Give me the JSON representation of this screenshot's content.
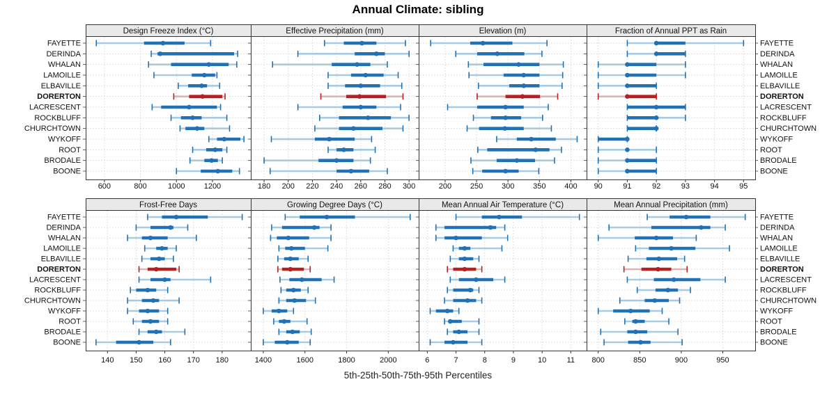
{
  "title": "Annual Climate: sibling",
  "caption": "5th-25th-50th-75th-95th Percentiles",
  "colors": {
    "series_blue": "#2171b5",
    "series_blue_light": "#a6cbe3",
    "highlight_red": "#b22222",
    "highlight_red_light": "#e3b2b2",
    "grid": "#d6d6d6",
    "strip_bg": "#e9e9e9",
    "panel_border": "#333333",
    "text": "#111111"
  },
  "chart_data": {
    "type": "dot-whisker",
    "note": "5th-25th-50th-75th-95th percentile summaries per location; DORERTON highlighted",
    "percentile_levels": [
      5,
      25,
      50,
      75,
      95
    ],
    "categories": [
      "FAYETTE",
      "DERINDA",
      "WHALAN",
      "LAMOILLE",
      "ELBAVILLE",
      "DORERTON",
      "LACRESCENT",
      "ROCKBLUFF",
      "CHURCHTOWN",
      "WYKOFF",
      "ROOT",
      "BRODALE",
      "BOONE"
    ],
    "highlight": "DORERTON",
    "legend_position": "none",
    "grid": "dotted",
    "panels": [
      {
        "title": "Design Freeze Index (°C)",
        "xticks": [
          600,
          800,
          1000,
          1200
        ],
        "xlim": [
          496,
          1413
        ],
        "values": [
          [
            555,
            820,
            925,
            1045,
            1190
          ],
          [
            860,
            895,
            910,
            1320,
            1340
          ],
          [
            845,
            970,
            1180,
            1290,
            1335
          ],
          [
            875,
            1085,
            1155,
            1215,
            1225
          ],
          [
            1010,
            1065,
            1140,
            1170,
            1240
          ],
          [
            985,
            1070,
            1145,
            1255,
            1270
          ],
          [
            865,
            915,
            1070,
            1225,
            1245
          ],
          [
            970,
            1025,
            1090,
            1140,
            1280
          ],
          [
            1020,
            1050,
            1115,
            1155,
            1295
          ],
          [
            1180,
            1225,
            1265,
            1355,
            1375
          ],
          [
            1090,
            1165,
            1215,
            1255,
            1280
          ],
          [
            1075,
            1155,
            1195,
            1230,
            1255
          ],
          [
            1000,
            1135,
            1230,
            1310,
            1350
          ]
        ]
      },
      {
        "title": "Effective Precipitation (mm)",
        "xticks": [
          180,
          200,
          220,
          240,
          260,
          280,
          300
        ],
        "xlim": [
          169,
          308
        ],
        "values": [
          [
            230,
            246,
            261,
            273,
            297
          ],
          [
            208,
            255,
            273,
            280,
            300
          ],
          [
            187,
            236,
            257,
            268,
            282
          ],
          [
            233,
            252,
            264,
            279,
            291
          ],
          [
            233,
            247,
            260,
            276,
            294
          ],
          [
            227,
            248,
            259,
            281,
            295
          ],
          [
            208,
            245,
            260,
            273,
            293
          ],
          [
            226,
            242,
            266,
            285,
            300
          ],
          [
            222,
            242,
            254,
            278,
            295
          ],
          [
            186,
            222,
            234,
            255,
            269
          ],
          [
            233,
            240,
            246,
            254,
            272
          ],
          [
            180,
            225,
            240,
            254,
            268
          ],
          [
            185,
            240,
            252,
            267,
            282
          ]
        ]
      },
      {
        "title": "Elevation (m)",
        "xticks": [
          200,
          250,
          300,
          350,
          400
        ],
        "xlim": [
          158,
          425
        ],
        "values": [
          [
            177,
            240,
            260,
            307,
            362
          ],
          [
            217,
            251,
            283,
            326,
            354
          ],
          [
            237,
            261,
            317,
            350,
            388
          ],
          [
            238,
            293,
            325,
            350,
            387
          ],
          [
            253,
            302,
            325,
            350,
            386
          ],
          [
            251,
            296,
            323,
            351,
            379
          ],
          [
            204,
            251,
            296,
            325,
            364
          ],
          [
            245,
            273,
            296,
            321,
            355
          ],
          [
            235,
            254,
            295,
            325,
            369
          ],
          [
            282,
            314,
            337,
            376,
            410
          ],
          [
            252,
            267,
            344,
            366,
            385
          ],
          [
            241,
            282,
            314,
            343,
            374
          ],
          [
            244,
            259,
            296,
            317,
            349
          ]
        ]
      },
      {
        "title": "Fraction of Annual PPT as Rain",
        "xticks": [
          90,
          91,
          92,
          93,
          94,
          95
        ],
        "xlim": [
          89.6,
          95.4
        ],
        "values": [
          [
            91,
            92,
            92,
            93,
            95
          ],
          [
            91,
            92,
            92,
            93,
            93
          ],
          [
            90,
            91,
            91,
            92,
            93
          ],
          [
            90,
            91,
            91,
            92,
            93
          ],
          [
            90,
            91,
            91,
            92,
            92
          ],
          [
            90,
            91,
            91,
            92,
            92
          ],
          [
            91,
            91,
            92,
            93,
            93
          ],
          [
            91,
            91,
            92,
            92,
            93
          ],
          [
            91,
            91,
            92,
            92,
            92
          ],
          [
            90,
            90,
            91,
            91,
            91
          ],
          [
            90,
            91,
            91,
            91,
            92
          ],
          [
            90,
            91,
            91,
            92,
            92
          ],
          [
            90,
            91,
            91,
            92,
            92
          ]
        ]
      },
      {
        "title": "Frost-Free Days",
        "xticks": [
          140,
          150,
          160,
          170,
          180
        ],
        "xlim": [
          132.4,
          190
        ],
        "values": [
          [
            154,
            159,
            164,
            175,
            187
          ],
          [
            150,
            155,
            162,
            163,
            168
          ],
          [
            147,
            152,
            155,
            161,
            171
          ],
          [
            153,
            157,
            159,
            161,
            164
          ],
          [
            152,
            155,
            158,
            160,
            163
          ],
          [
            151,
            154,
            157,
            164,
            165
          ],
          [
            151,
            155,
            160,
            162,
            176
          ],
          [
            148,
            150,
            154,
            157,
            161
          ],
          [
            147,
            152,
            156,
            158,
            165
          ],
          [
            147,
            151,
            154,
            158,
            161
          ],
          [
            149,
            152,
            155,
            158,
            161
          ],
          [
            151,
            154,
            157,
            159,
            167
          ],
          [
            136,
            143,
            151,
            156,
            162
          ]
        ]
      },
      {
        "title": "Growing Degree Days (°C)",
        "xticks": [
          1400,
          1600,
          1800,
          2000
        ],
        "xlim": [
          1340,
          2146
        ],
        "values": [
          [
            1505,
            1575,
            1705,
            1840,
            2105
          ],
          [
            1440,
            1490,
            1645,
            1670,
            1725
          ],
          [
            1435,
            1465,
            1520,
            1620,
            1725
          ],
          [
            1475,
            1505,
            1535,
            1600,
            1710
          ],
          [
            1470,
            1500,
            1530,
            1570,
            1615
          ],
          [
            1470,
            1490,
            1530,
            1595,
            1625
          ],
          [
            1480,
            1525,
            1585,
            1680,
            1740
          ],
          [
            1485,
            1510,
            1545,
            1580,
            1615
          ],
          [
            1475,
            1510,
            1550,
            1605,
            1650
          ],
          [
            1400,
            1440,
            1475,
            1515,
            1545
          ],
          [
            1450,
            1475,
            1500,
            1530,
            1610
          ],
          [
            1475,
            1510,
            1540,
            1575,
            1630
          ],
          [
            1400,
            1455,
            1515,
            1570,
            1625
          ]
        ]
      },
      {
        "title": "Mean Annual Air Temperature (°C)",
        "xticks": [
          6,
          7,
          8,
          9,
          10,
          11
        ],
        "xlim": [
          5.7,
          11.55
        ],
        "values": [
          [
            7.0,
            7.9,
            8.5,
            9.3,
            11.3
          ],
          [
            6.3,
            6.6,
            8.2,
            8.4,
            8.7
          ],
          [
            6.3,
            6.6,
            7.0,
            7.9,
            8.8
          ],
          [
            6.9,
            7.1,
            7.3,
            7.5,
            8.6
          ],
          [
            6.8,
            7.1,
            7.3,
            7.6,
            7.8
          ],
          [
            6.7,
            6.9,
            7.3,
            7.7,
            7.9
          ],
          [
            6.8,
            7.1,
            7.7,
            8.3,
            8.7
          ],
          [
            6.7,
            6.9,
            7.5,
            7.6,
            7.8
          ],
          [
            6.6,
            6.9,
            7.4,
            7.7,
            7.9
          ],
          [
            6.1,
            6.3,
            6.7,
            6.9,
            7.1
          ],
          [
            6.6,
            6.8,
            6.8,
            7.2,
            7.8
          ],
          [
            6.7,
            6.9,
            7.1,
            7.4,
            7.8
          ],
          [
            6.1,
            6.6,
            6.9,
            7.4,
            7.9
          ]
        ]
      },
      {
        "title": "Mean Annual Precipitation (mm)",
        "xticks": [
          800,
          850,
          900,
          950
        ],
        "xlim": [
          786,
          989
        ],
        "values": [
          [
            859,
            886,
            906,
            935,
            977
          ],
          [
            813,
            864,
            924,
            935,
            953
          ],
          [
            800,
            844,
            870,
            890,
            918
          ],
          [
            845,
            861,
            888,
            917,
            958
          ],
          [
            836,
            858,
            873,
            895,
            904
          ],
          [
            831,
            852,
            872,
            888,
            907
          ],
          [
            835,
            867,
            891,
            923,
            953
          ],
          [
            847,
            869,
            884,
            896,
            911
          ],
          [
            826,
            856,
            868,
            885,
            898
          ],
          [
            800,
            818,
            839,
            862,
            877
          ],
          [
            832,
            841,
            845,
            856,
            885
          ],
          [
            803,
            835,
            845,
            859,
            896
          ],
          [
            807,
            836,
            851,
            863,
            901
          ]
        ]
      }
    ]
  }
}
